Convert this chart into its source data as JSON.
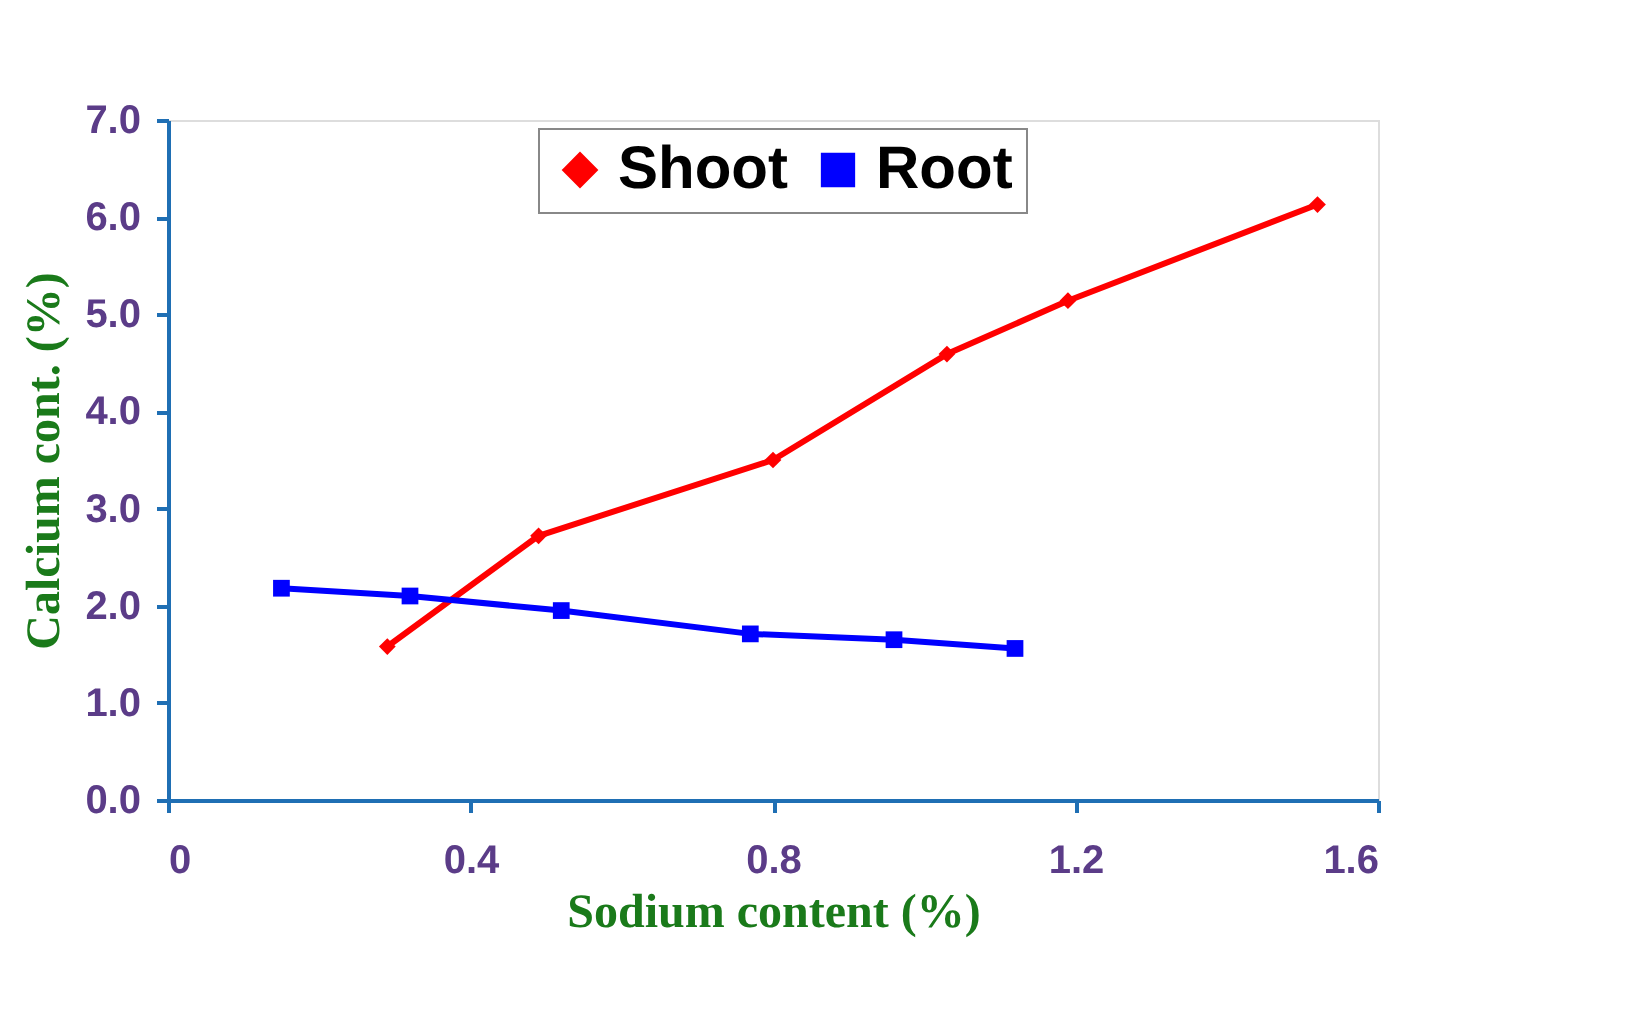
{
  "chart_data": {
    "type": "line",
    "xlabel": "Sodium content (%)",
    "ylabel": "Calcium cont. (%)",
    "xlim": [
      0,
      1.6
    ],
    "xticks": [
      0,
      {
        "value": 0.4,
        "label": "0.4"
      },
      {
        "value": 0.8,
        "label": "0.8"
      },
      {
        "value": 1.2,
        "label": "1.2"
      },
      {
        "value": 1.6,
        "label": "1.6"
      }
    ],
    "ylim": [
      0,
      7
    ],
    "yticks": [
      {
        "value": 0,
        "label": "0.0"
      },
      {
        "value": 1,
        "label": "1.0"
      },
      {
        "value": 2,
        "label": "2.0"
      },
      {
        "value": 3,
        "label": "3.0"
      },
      {
        "value": 4,
        "label": "4.0"
      },
      {
        "value": 5,
        "label": "5.0"
      },
      {
        "value": 6,
        "label": "6.0"
      },
      {
        "value": 7,
        "label": "7.0"
      }
    ],
    "grid": false,
    "legend": "top",
    "line_style": "solid",
    "series": [
      {
        "name": "Shoot",
        "color": "#ff0000",
        "marker": "diamond",
        "x": [
          0.29,
          0.49,
          0.8,
          1.03,
          1.19,
          1.52
        ],
        "values": [
          1.58,
          2.72,
          3.5,
          4.59,
          5.14,
          6.13
        ]
      },
      {
        "name": "Root",
        "color": "#0000ff",
        "marker": "square",
        "x": [
          0.15,
          0.32,
          0.52,
          0.77,
          0.96,
          1.12
        ],
        "values": [
          2.18,
          2.1,
          1.95,
          1.71,
          1.65,
          1.56
        ]
      }
    ]
  }
}
